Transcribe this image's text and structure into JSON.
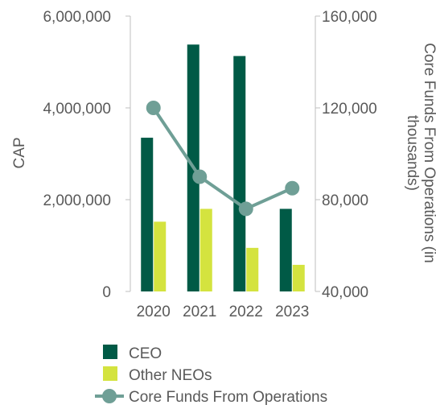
{
  "chart_data": {
    "type": "bar",
    "categories": [
      "2020",
      "2021",
      "2022",
      "2023"
    ],
    "series": [
      {
        "name": "CEO",
        "type": "bar",
        "axis": "left",
        "color": "#005a46",
        "values": [
          3350000,
          5380000,
          5130000,
          1800000
        ]
      },
      {
        "name": "Other NEOs",
        "type": "bar",
        "axis": "left",
        "color": "#d4e33f",
        "values": [
          1520000,
          1800000,
          950000,
          580000
        ]
      },
      {
        "name": "Core Funds From Operations",
        "type": "line",
        "axis": "right",
        "color": "#6f9f96",
        "values": [
          120000,
          90000,
          76000,
          85000
        ]
      }
    ],
    "ylabel": "CAP",
    "ylim": [
      0,
      6000000
    ],
    "yticks": [
      "0",
      "2,000,000",
      "4,000,000",
      "6,000,000"
    ],
    "y2label_lines": [
      "Core Funds From Operations (in",
      "thousands)"
    ],
    "y2lim": [
      40000,
      160000
    ],
    "y2ticks": [
      "40,000",
      "80,000",
      "120,000",
      "160,000"
    ],
    "grid": false,
    "legend_position": "bottom"
  }
}
